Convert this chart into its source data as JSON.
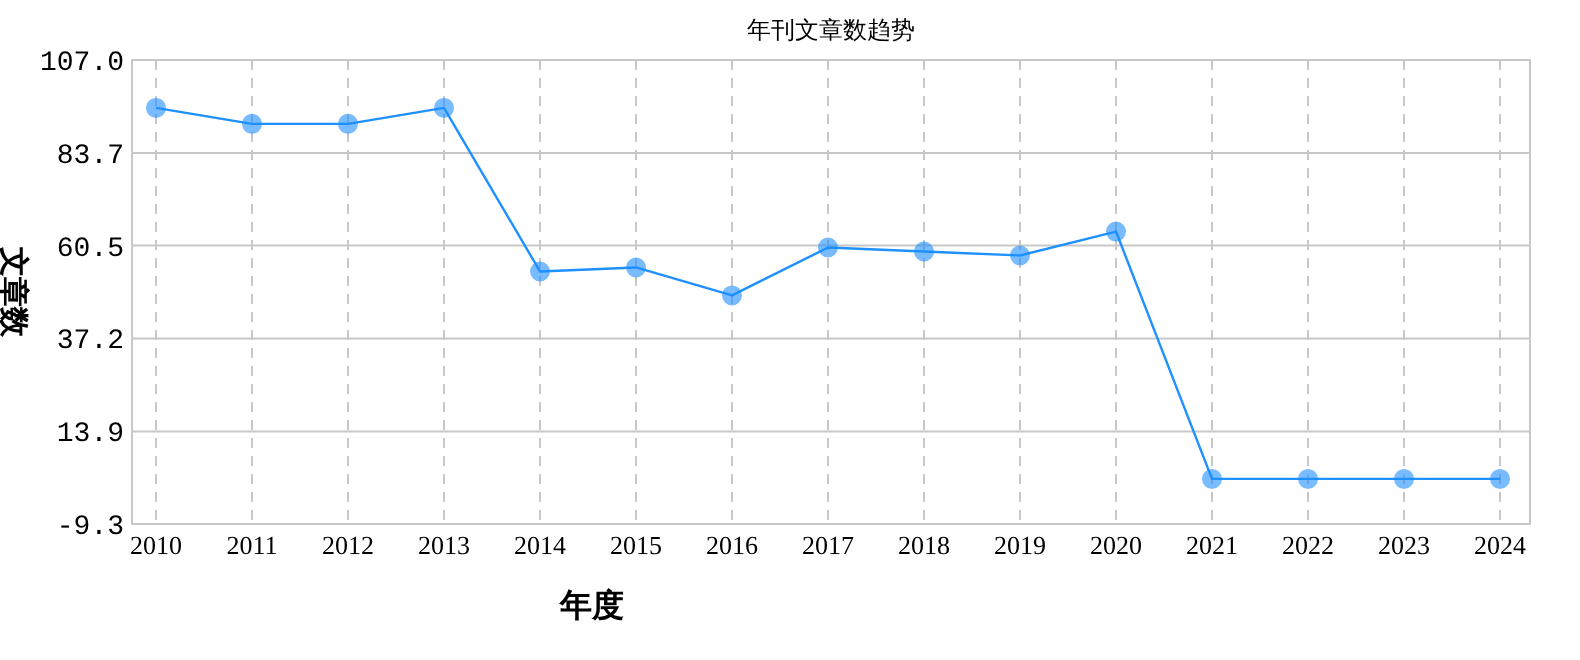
{
  "chart_data": {
    "type": "line",
    "title": "年刊文章数趋势",
    "xlabel": "年度",
    "ylabel": "文章数",
    "categories": [
      "2010",
      "2011",
      "2012",
      "2013",
      "2014",
      "2015",
      "2016",
      "2017",
      "2018",
      "2019",
      "2020",
      "2021",
      "2022",
      "2023",
      "2024"
    ],
    "series": [
      {
        "color": "#1e90ff",
        "values": [
          95,
          91,
          91,
          95,
          54,
          55,
          48,
          60,
          59,
          58,
          64,
          2,
          2,
          2,
          2
        ]
      }
    ],
    "ylim": [
      -9.3,
      107.0
    ],
    "yticks": [
      -9.3,
      13.9,
      37.2,
      60.5,
      83.7,
      {
        "value": 107.0,
        "label": "107.0"
      }
    ],
    "grid": true,
    "marker": "circle",
    "line_style": "solid"
  }
}
